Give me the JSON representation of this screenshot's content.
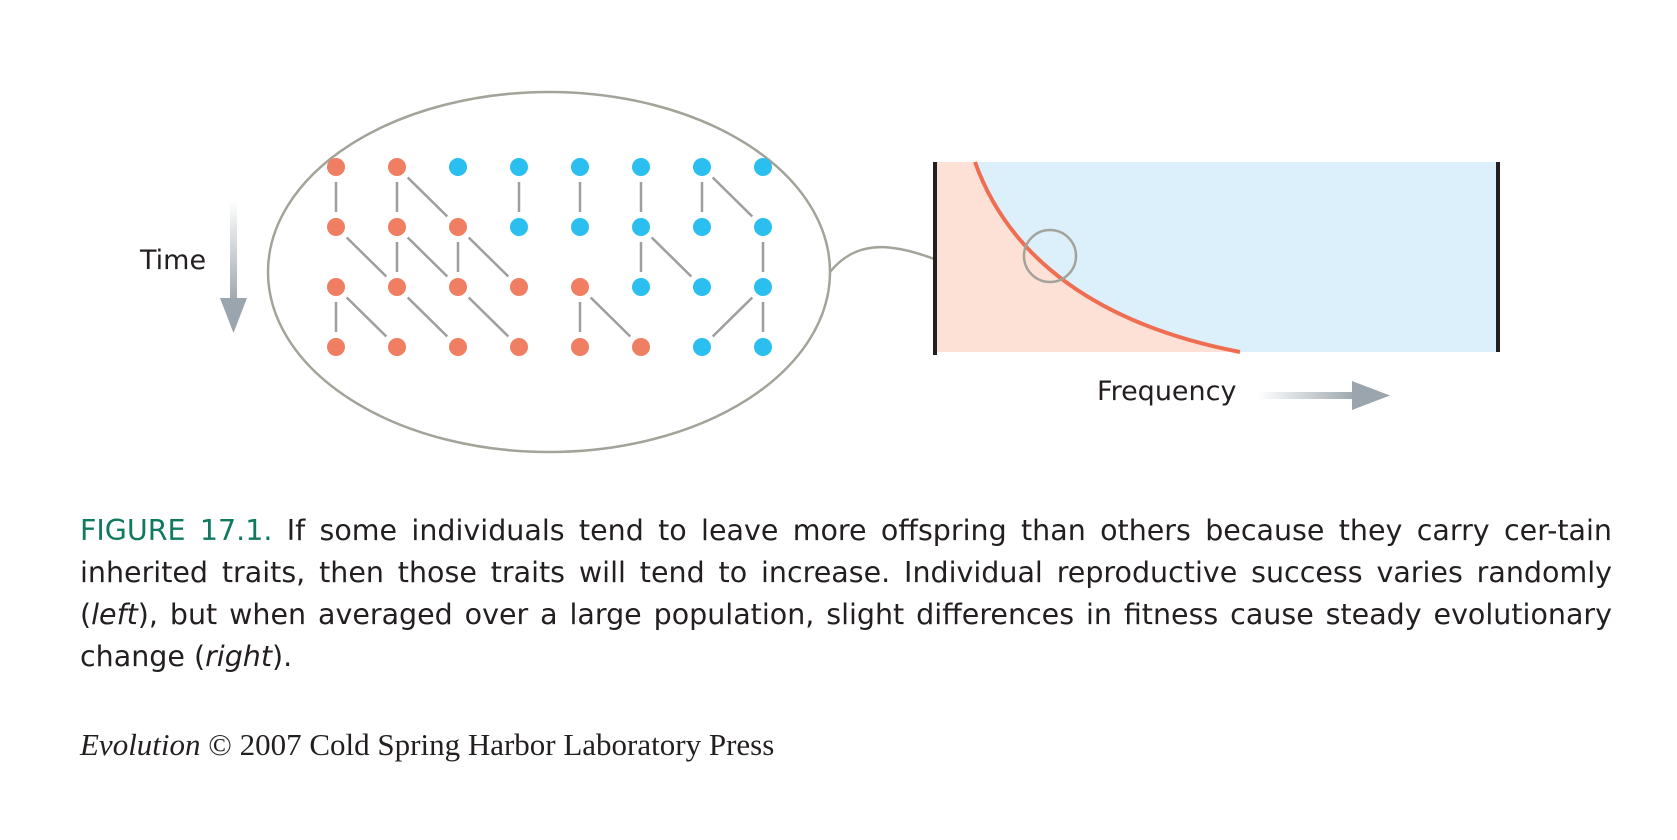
{
  "diagram": {
    "time_label": "Time",
    "frequency_label": "Frequency",
    "colors": {
      "trait_a": "#f07e62",
      "trait_b": "#2bbff0",
      "region_a": "#fde0d6",
      "region_b": "#dbf0fb",
      "curve": "#ef6e52",
      "line": "#9e9e9e",
      "outline": "#a3a39a"
    },
    "generations": [
      [
        "a",
        "a",
        "b",
        "b",
        "b",
        "b",
        "b",
        "b"
      ],
      [
        "a",
        "a",
        "a",
        "b",
        "b",
        "b",
        "b",
        "b"
      ],
      [
        "a",
        "a",
        "a",
        "a",
        "a",
        "b",
        "b",
        "b"
      ],
      [
        "a",
        "a",
        "a",
        "a",
        "a",
        "a",
        "b",
        "b"
      ]
    ],
    "lineage": [
      [
        [
          0,
          0
        ],
        [
          1,
          1
        ],
        [
          1,
          2
        ],
        [
          3,
          3
        ],
        [
          4,
          4
        ],
        [
          5,
          5
        ],
        [
          6,
          6
        ],
        [
          6,
          7
        ]
      ],
      [
        [
          0,
          1
        ],
        [
          1,
          1
        ],
        [
          1,
          2
        ],
        [
          2,
          2
        ],
        [
          2,
          3
        ],
        [
          5,
          5
        ],
        [
          5,
          6
        ],
        [
          7,
          7
        ]
      ],
      [
        [
          0,
          0
        ],
        [
          0,
          1
        ],
        [
          1,
          2
        ],
        [
          2,
          3
        ],
        [
          4,
          4
        ],
        [
          4,
          5
        ],
        [
          7,
          6
        ],
        [
          7,
          7
        ]
      ]
    ],
    "frequency_curve": {
      "type": "area",
      "x_range": [
        0,
        1
      ],
      "y_range": [
        0,
        1
      ],
      "description_points": []
    }
  },
  "caption": {
    "label": "FIGURE 17.1.",
    "text_1": " If some individuals tend to leave more offspring than others because they carry cer-tain inherited traits, then those traits will tend to increase. Individual reproductive success varies randomly (",
    "italic_1": "left",
    "text_2": "), but when averaged over a large population, slight differences in fitness cause steady evolutionary change (",
    "italic_2": "right",
    "text_3": ")."
  },
  "credit": {
    "book": "Evolution",
    "rest": " © 2007 Cold Spring Harbor Laboratory Press"
  }
}
